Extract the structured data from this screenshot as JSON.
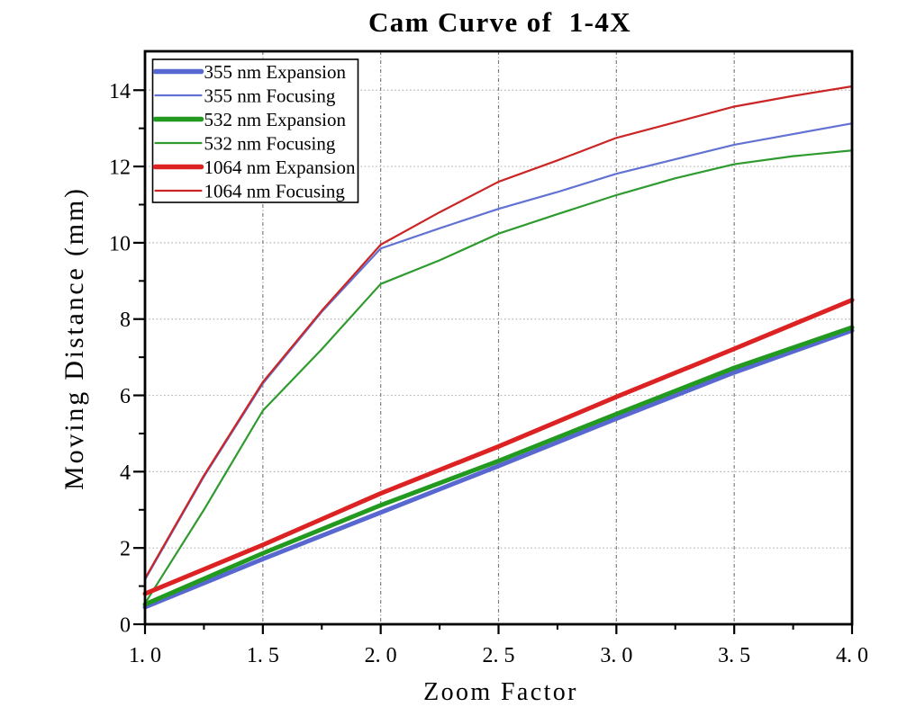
{
  "chart_data": {
    "type": "line",
    "title": "Cam Curve of  1-4X",
    "xlabel": "Zoom Factor",
    "ylabel": "Moving Distance (mm)",
    "xlim": [
      1.0,
      4.0
    ],
    "ylim": [
      0,
      15.02
    ],
    "grid": {
      "horizontal_at": [
        2,
        4,
        6,
        8,
        10,
        12,
        14
      ],
      "vertical_at": [
        1.5,
        2.0,
        2.5,
        3.0,
        3.5
      ],
      "horizontal_color": "#b4b4b4",
      "vertical_color": "#7f7f7f"
    },
    "x_ticks": {
      "major": [
        1.0,
        1.5,
        2.0,
        2.5,
        3.0,
        3.5,
        4.0
      ],
      "labels": [
        "1. 0",
        "1. 5",
        "2. 0",
        "2. 5",
        "3. 0",
        "3. 5",
        "4. 0"
      ],
      "minor": [
        1.25,
        1.75,
        2.25,
        2.75,
        3.25,
        3.75
      ]
    },
    "y_ticks": {
      "major": [
        0,
        2,
        4,
        6,
        8,
        10,
        12,
        14
      ],
      "labels": [
        "0",
        "2",
        "4",
        "6",
        "8",
        "10",
        "12",
        "14"
      ],
      "minor": [
        1,
        3,
        5,
        7,
        9,
        11,
        13,
        15
      ]
    },
    "legend": {
      "position": "top-left",
      "entries": [
        {
          "label": "355 nm Expansion",
          "color": "#5868d0",
          "thick": true
        },
        {
          "label": "355 nm Focusing",
          "color": "#6272d2",
          "thick": false
        },
        {
          "label": "532 nm Expansion",
          "color": "#22991f",
          "thick": true
        },
        {
          "label": "532 nm Focusing",
          "color": "#2f9b2f",
          "thick": false
        },
        {
          "label": "1064 nm Expansion",
          "color": "#dc2222",
          "thick": true
        },
        {
          "label": "1064 nm Focusing",
          "color": "#cc2525",
          "thick": false
        }
      ]
    },
    "series": [
      {
        "name": "355 nm Expansion",
        "color": "#5868d0",
        "width": 5,
        "x": [
          1.0,
          1.5,
          2.0,
          2.5,
          3.0,
          3.5,
          4.0
        ],
        "y": [
          0.45,
          1.71,
          2.93,
          4.15,
          5.39,
          6.6,
          7.7
        ]
      },
      {
        "name": "355 nm Focusing",
        "color": "#6272d2",
        "width": 2.2,
        "x": [
          1.0,
          1.25,
          1.5,
          1.75,
          2.0,
          2.25,
          2.5,
          2.75,
          3.0,
          3.25,
          3.5,
          3.75,
          4.0
        ],
        "y": [
          1.17,
          3.87,
          6.31,
          8.19,
          9.85,
          10.38,
          10.89,
          11.33,
          11.81,
          12.19,
          12.57,
          12.85,
          13.13
        ]
      },
      {
        "name": "532 nm Expansion",
        "color": "#22991f",
        "width": 5,
        "x": [
          1.0,
          1.5,
          2.0,
          2.5,
          3.0,
          3.5,
          4.0
        ],
        "y": [
          0.52,
          1.86,
          3.12,
          4.28,
          5.51,
          6.72,
          7.78
        ]
      },
      {
        "name": "532 nm Focusing",
        "color": "#2f9b2f",
        "width": 2.2,
        "x": [
          1.0,
          1.25,
          1.5,
          1.75,
          2.0,
          2.25,
          2.5,
          2.75,
          3.0,
          3.25,
          3.5,
          3.75,
          4.0
        ],
        "y": [
          0.55,
          3.0,
          5.6,
          7.21,
          8.92,
          9.54,
          10.24,
          10.75,
          11.25,
          11.69,
          12.06,
          12.27,
          12.42
        ]
      },
      {
        "name": "1064 nm Expansion",
        "color": "#dc2222",
        "width": 5,
        "x": [
          1.0,
          1.5,
          2.0,
          2.5,
          3.0,
          3.5,
          4.0
        ],
        "y": [
          0.8,
          2.08,
          3.43,
          4.66,
          5.96,
          7.22,
          8.5
        ]
      },
      {
        "name": "1064 nm Focusing",
        "color": "#cc2525",
        "width": 2.2,
        "x": [
          1.0,
          1.25,
          1.5,
          1.75,
          2.0,
          2.25,
          2.5,
          2.75,
          3.0,
          3.25,
          3.5,
          3.75,
          4.0
        ],
        "y": [
          1.2,
          3.9,
          6.35,
          8.22,
          9.95,
          10.8,
          11.6,
          12.16,
          12.75,
          13.16,
          13.57,
          13.85,
          14.1
        ]
      }
    ],
    "frame_color": "#000000",
    "plot_background": "#ffffff"
  }
}
